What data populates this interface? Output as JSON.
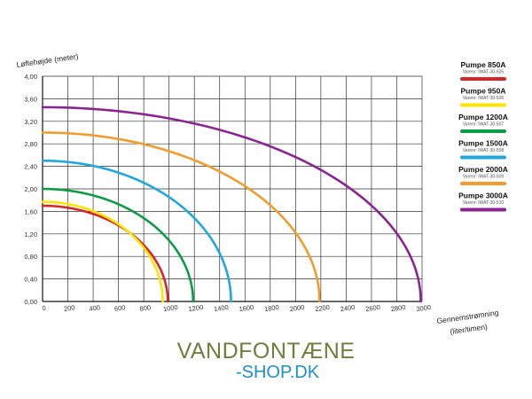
{
  "chart_data": {
    "type": "line",
    "title": "",
    "ylabel": "Løftehøjde (meter)",
    "xlabel_lines": [
      "Gennemstrømning",
      "(liter/timen)"
    ],
    "xlim": [
      0,
      3000
    ],
    "ylim": [
      0,
      4.0
    ],
    "x_ticks": [
      {
        "value": 0,
        "label": "0"
      },
      {
        "value": 200,
        "label": "200"
      },
      {
        "value": 400,
        "label": "400"
      },
      {
        "value": 600,
        "label": "600"
      },
      {
        "value": 800,
        "label": "800"
      },
      {
        "value": 1000,
        "label": "1000"
      },
      {
        "value": 1200,
        "label": "1200"
      },
      {
        "value": 1400,
        "label": "1400"
      },
      {
        "value": 1600,
        "label": "1600"
      },
      {
        "value": 1800,
        "label": "1800"
      },
      {
        "value": 2000,
        "label": "2000"
      },
      {
        "value": 2200,
        "label": "2200"
      },
      {
        "value": 2400,
        "label": "2400"
      },
      {
        "value": 2600,
        "label": "2600"
      },
      {
        "value": 2800,
        "label": "2800"
      },
      {
        "value": 3000,
        "label": "3000"
      }
    ],
    "y_ticks": [
      {
        "value": 0,
        "label": "0,00"
      },
      {
        "value": 0.4,
        "label": "0,40"
      },
      {
        "value": 0.8,
        "label": "0,80"
      },
      {
        "value": 1.2,
        "label": "1,20"
      },
      {
        "value": 1.6,
        "label": "1,60"
      },
      {
        "value": 2.0,
        "label": "2,00"
      },
      {
        "value": 2.4,
        "label": "2,40"
      },
      {
        "value": 2.8,
        "label": "2,80"
      },
      {
        "value": 3.2,
        "label": "3,20"
      },
      {
        "value": 3.6,
        "label": "3,60"
      },
      {
        "value": 4.0,
        "label": "4,00"
      }
    ],
    "grid": true,
    "legend_position": "right",
    "series": [
      {
        "name": "Pumpe 850A",
        "subtitle": "Varenr: IWAT-30-505",
        "color": "#d7262b",
        "max_head": 1.7,
        "max_flow": 990
      },
      {
        "name": "Pumpe 950A",
        "subtitle": "Varenr: IWAT-30-506",
        "color": "#ffe400",
        "max_head": 1.77,
        "max_flow": 950
      },
      {
        "name": "Pumpe 1200A",
        "subtitle": "Varenr: IWAT-30-507",
        "color": "#0e9b48",
        "max_head": 2.0,
        "max_flow": 1190
      },
      {
        "name": "Pumpe 1500A",
        "subtitle": "Varenr: IWAT-30-508",
        "color": "#1fa7e0",
        "max_head": 2.5,
        "max_flow": 1490
      },
      {
        "name": "Pumpe 2000A",
        "subtitle": "Varenr: IWAT-30-509",
        "color": "#f19c2c",
        "max_head": 3.0,
        "max_flow": 2190
      },
      {
        "name": "Pumpe 3000A",
        "subtitle": "Varenr: IWAT-30-510",
        "color": "#8b2390",
        "max_head": 3.45,
        "max_flow": 2990
      }
    ]
  },
  "logo": {
    "line1": "VANDFONTÆNE",
    "line2": "-SHOP.DK"
  }
}
